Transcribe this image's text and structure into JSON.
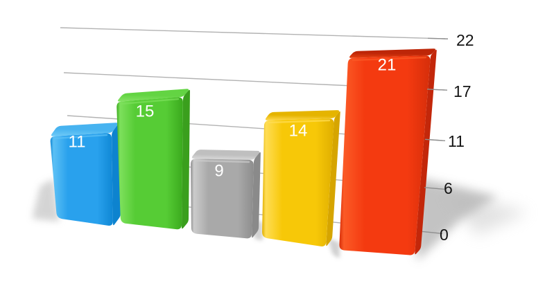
{
  "chart_data": {
    "type": "bar",
    "projection": "3d-perspective",
    "values": [
      11,
      15,
      9,
      14,
      21
    ],
    "bar_labels": [
      "11",
      "15",
      "9",
      "14",
      "21"
    ],
    "bar_colors": [
      {
        "name": "blue",
        "front": "#29a1ed",
        "light": "#5cc0f5",
        "dark": "#0f87d4",
        "top": "#47b3f0",
        "topLight": "#6fcaf7",
        "side": "#0d83cf"
      },
      {
        "name": "green",
        "front": "#56cc35",
        "light": "#7de05c",
        "dark": "#3aa91d",
        "top": "#63d443",
        "topLight": "#85e264",
        "side": "#3a9f1d"
      },
      {
        "name": "gray",
        "front": "#a9a9a9",
        "light": "#cccccc",
        "dark": "#8d8d8d",
        "top": "#bfbfbf",
        "topLight": "#dedede",
        "side": "#8a8a8a"
      },
      {
        "name": "yellow",
        "front": "#f7c808",
        "light": "#ffdd55",
        "dark": "#dfae00",
        "top": "#e5b400",
        "topLight": "#ffd84e",
        "side": "#d6a500"
      },
      {
        "name": "red",
        "front": "#f43a10",
        "light": "#fb5a26",
        "dark": "#d62e0a",
        "top": "#bd2608",
        "topLight": "#e8400f",
        "side": "#c3270a"
      }
    ],
    "ylim": [
      0,
      22
    ],
    "y_axis": {
      "side": "right",
      "ticks": [
        {
          "value": 22,
          "label": "22"
        },
        {
          "value": 16.5,
          "label": "17"
        },
        {
          "value": 11,
          "label": "11"
        },
        {
          "value": 5.5,
          "label": "6"
        },
        {
          "value": 0,
          "label": "0"
        }
      ]
    },
    "gridlines": true,
    "legend": false,
    "title": "",
    "background": "#ffffff",
    "gridline_color": "#b2b2b2",
    "tick_color": "#8f8f8f",
    "axis_label_color": "#141414",
    "value_label_color": "#ffffff",
    "shadow_color": "#b9b9b9"
  }
}
